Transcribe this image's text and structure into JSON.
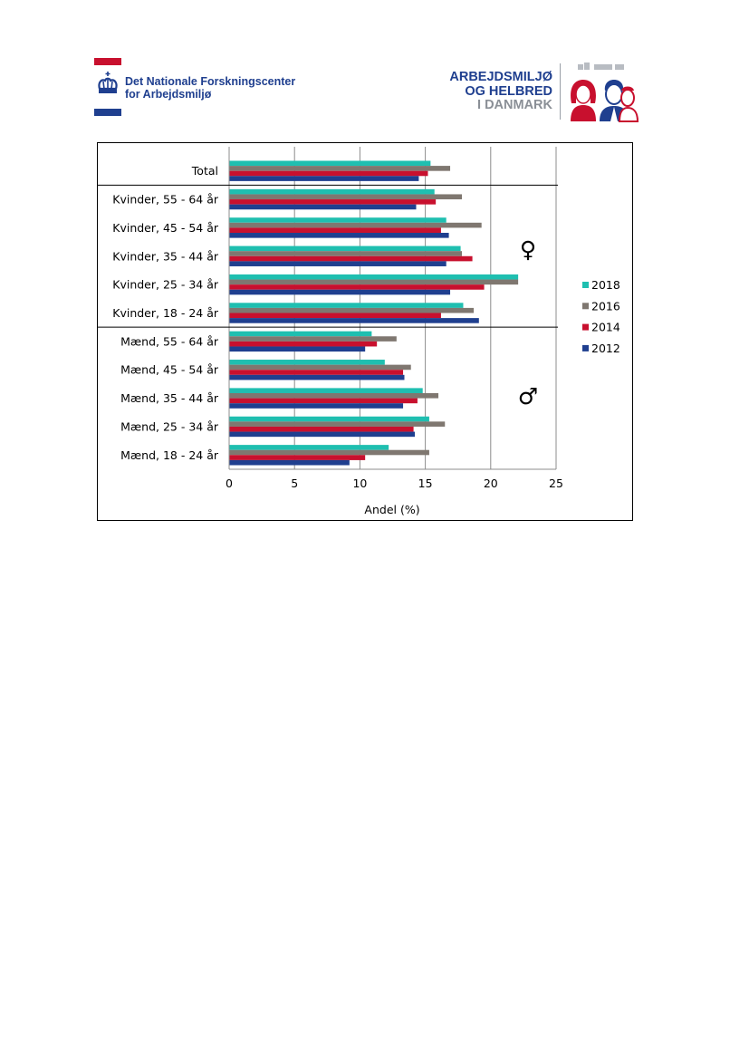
{
  "header": {
    "nfa_logo": {
      "line1": "Det Nationale Forskningscenter",
      "line2": "for Arbejdsmiljø"
    },
    "ah_logo": {
      "line1": "ARBEJDSMILJØ",
      "line2": "OG HELBRED",
      "line3": "I DANMARK"
    }
  },
  "colors": {
    "brand_blue": "#1f3f8f",
    "brand_red": "#c8102e",
    "gray": "#8a8f96"
  },
  "chart_data": {
    "type": "bar",
    "orientation": "horizontal",
    "categories": [
      "Total",
      "Kvinder, 55 - 64 år",
      "Kvinder, 45 - 54 år",
      "Kvinder, 35 - 44 år",
      "Kvinder, 25 - 34 år",
      "Kvinder, 18 - 24 år",
      "Mænd, 55 - 64 år",
      "Mænd, 45 - 54 år",
      "Mænd, 35 - 44 år",
      "Mænd, 25 - 34 år",
      "Mænd, 18 - 24 år"
    ],
    "series": [
      {
        "name": "2018",
        "color": "#1fbfb0",
        "values": [
          15.4,
          15.7,
          16.6,
          17.7,
          22.1,
          17.9,
          10.9,
          11.9,
          14.8,
          15.3,
          12.2
        ]
      },
      {
        "name": "2016",
        "color": "#7f7770",
        "values": [
          16.9,
          17.8,
          19.3,
          17.8,
          22.1,
          18.7,
          12.8,
          13.9,
          16.0,
          16.5,
          15.3
        ]
      },
      {
        "name": "2014",
        "color": "#c8102e",
        "values": [
          15.2,
          15.8,
          16.2,
          18.6,
          19.5,
          16.2,
          11.3,
          13.3,
          14.4,
          14.1,
          10.4
        ]
      },
      {
        "name": "2012",
        "color": "#1f3f8f",
        "values": [
          14.5,
          14.3,
          16.8,
          16.6,
          16.9,
          19.1,
          10.4,
          13.4,
          13.3,
          14.2,
          9.2
        ]
      }
    ],
    "xlabel": "Andel (%)",
    "ylabel": "",
    "xlim": [
      0,
      25
    ],
    "xticks": [
      "0",
      "5",
      "10",
      "15",
      "20",
      "25"
    ],
    "grid": "vertical",
    "legend_placement": "right",
    "legend_order": [
      "2018",
      "2016",
      "2014",
      "2012"
    ],
    "group_symbols": {
      "women": "♀",
      "men": "♂"
    }
  }
}
